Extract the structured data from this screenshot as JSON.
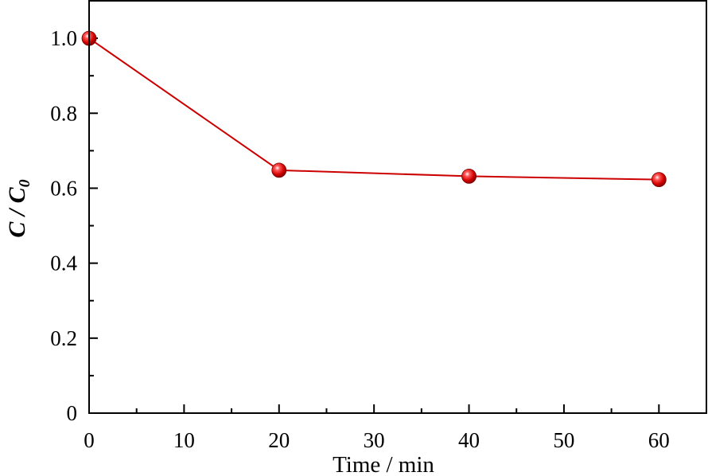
{
  "chart_data": {
    "type": "line",
    "title": "",
    "xlabel": "Time / min",
    "ylabel": {
      "main": "C / C",
      "sub": "0"
    },
    "xlim": [
      0,
      65
    ],
    "ylim": [
      0,
      1.1
    ],
    "x_ticks": [
      0,
      10,
      20,
      30,
      40,
      50,
      60
    ],
    "x_tick_labels": [
      "0",
      "10",
      "20",
      "30",
      "40",
      "50",
      "60"
    ],
    "y_ticks": [
      0,
      0.2,
      0.4,
      0.6,
      0.8,
      1.0
    ],
    "y_tick_labels": [
      "0",
      "0.2",
      "0.4",
      "0.6",
      "0.8",
      "1.0"
    ],
    "grid": false,
    "legend": "none",
    "series": [
      {
        "color": "#cc0000",
        "x": [
          0,
          20,
          40,
          60
        ],
        "y": [
          1.0,
          0.648,
          0.632,
          0.623
        ]
      }
    ]
  }
}
